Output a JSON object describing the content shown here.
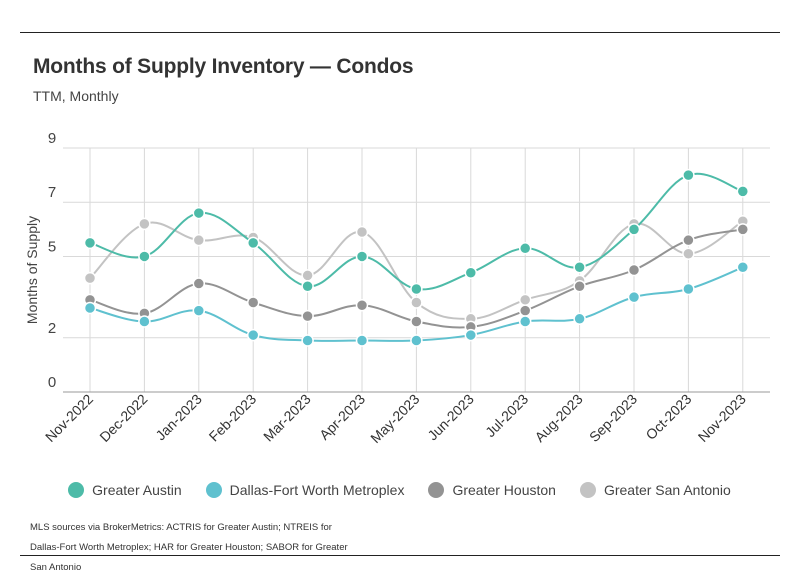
{
  "header": {
    "title": "Months of Supply Inventory — Condos",
    "subtitle": "TTM, Monthly"
  },
  "footer": {
    "source": "MLS sources via BrokerMetrics: ACTRIS for Greater Austin; NTREIS for Dallas-Fort Worth Metroplex; HAR for Greater Houston; SABOR for Greater San Antonio"
  },
  "chart_data": {
    "type": "line",
    "title": "Months of Supply Inventory — Condos",
    "subtitle": "TTM, Monthly",
    "xlabel": "",
    "ylabel": "Months of Supply",
    "ylim": [
      0,
      9
    ],
    "yticks": [
      0,
      2,
      5,
      7,
      9
    ],
    "grid": true,
    "legend_position": "bottom",
    "x": [
      "Nov-2022",
      "Dec-2022",
      "Jan-2023",
      "Feb-2023",
      "Mar-2023",
      "Apr-2023",
      "May-2023",
      "Jun-2023",
      "Jul-2023",
      "Aug-2023",
      "Sep-2023",
      "Oct-2023",
      "Nov-2023"
    ],
    "series": [
      {
        "name": "Greater Austin",
        "color": "#4dbba8",
        "values": [
          5.5,
          5.0,
          6.6,
          5.5,
          3.9,
          5.0,
          3.8,
          4.4,
          5.3,
          4.6,
          6.0,
          8.0,
          7.4
        ]
      },
      {
        "name": "Dallas-Fort Worth Metroplex",
        "color": "#5fc1cf",
        "values": [
          3.1,
          2.6,
          3.0,
          2.1,
          1.9,
          1.9,
          1.9,
          2.1,
          2.6,
          2.7,
          3.5,
          3.8,
          4.6
        ]
      },
      {
        "name": "Greater Houston",
        "color": "#939393",
        "values": [
          3.4,
          2.9,
          4.0,
          3.3,
          2.8,
          3.2,
          2.6,
          2.4,
          3.0,
          3.9,
          4.5,
          5.6,
          6.0
        ]
      },
      {
        "name": "Greater San Antonio",
        "color": "#c3c3c3",
        "values": [
          4.2,
          6.2,
          5.6,
          5.7,
          4.3,
          5.9,
          3.3,
          2.7,
          3.4,
          4.1,
          6.2,
          5.1,
          6.3
        ]
      }
    ]
  }
}
